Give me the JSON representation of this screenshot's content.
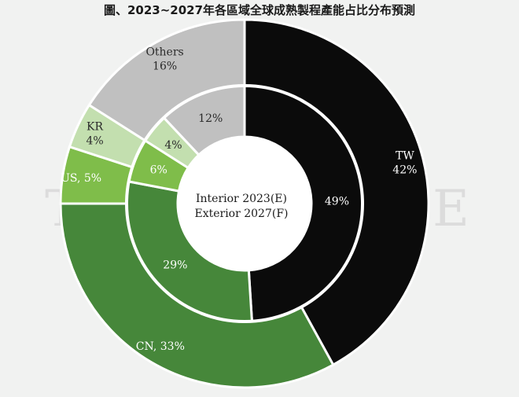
{
  "chart_data": {
    "type": "pie",
    "title": "圖、2023~2027年各區域全球成熟製程產能占比分布預測",
    "center_label": [
      "Interior 2023(E)",
      "Exterior 2027(F)"
    ],
    "watermark": "TRENDFORCE",
    "series": [
      {
        "name": "2023(E)",
        "ring": "inner",
        "slices": [
          {
            "category": "TW",
            "value": 49,
            "label": "49%",
            "color": "#0b0b0b"
          },
          {
            "category": "CN",
            "value": 29,
            "label": "29%",
            "color": "#46873a"
          },
          {
            "category": "US",
            "value": 6,
            "label": "6%",
            "color": "#7fbd4a"
          },
          {
            "category": "KR",
            "value": 4,
            "label": "4%",
            "color": "#c3dfaf"
          },
          {
            "category": "Others",
            "value": 12,
            "label": "12%",
            "color": "#c0c0c0"
          }
        ]
      },
      {
        "name": "2027(F)",
        "ring": "outer",
        "slices": [
          {
            "category": "TW",
            "value": 42,
            "label": "TW\n42%",
            "color": "#0b0b0b"
          },
          {
            "category": "CN",
            "value": 33,
            "label": "CN, 33%",
            "color": "#46873a"
          },
          {
            "category": "US",
            "value": 5,
            "label": "US, 5%",
            "color": "#7fbd4a"
          },
          {
            "category": "KR",
            "value": 4,
            "label": "KR\n4%",
            "color": "#c3dfaf"
          },
          {
            "category": "Others",
            "value": 16,
            "label": "Others\n16%",
            "color": "#c0c0c0"
          }
        ]
      }
    ]
  }
}
